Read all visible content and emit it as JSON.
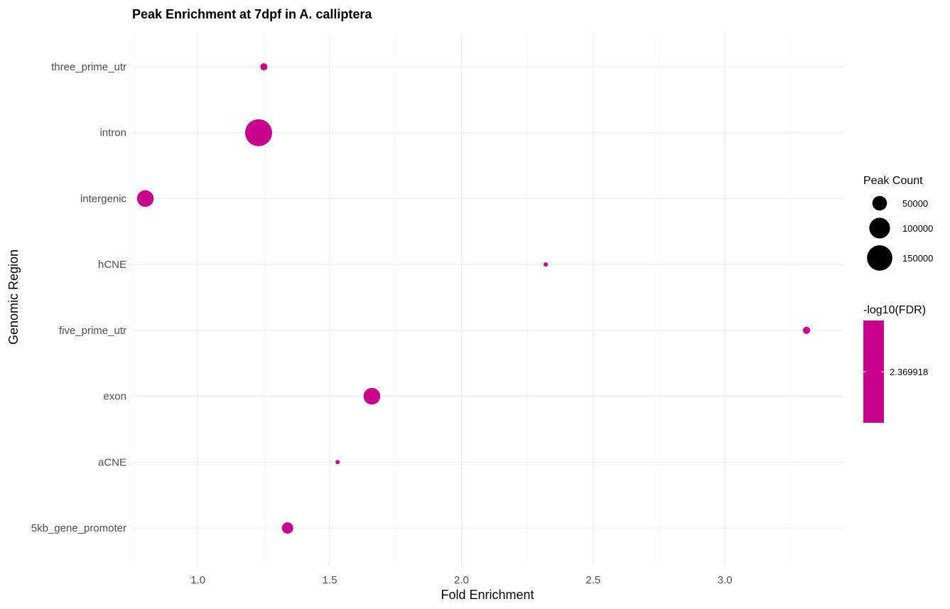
{
  "chart_data": {
    "type": "scatter",
    "title": "Peak Enrichment at 7dpf in A. calliptera",
    "xlabel": "Fold Enrichment",
    "ylabel": "Genomic Region",
    "xlim": [
      0.75,
      3.45
    ],
    "x_ticks": [
      "1.0",
      "1.5",
      "2.0",
      "2.5",
      "3.0"
    ],
    "x_tick_values": [
      1.0,
      1.5,
      2.0,
      2.5,
      3.0
    ],
    "categories": [
      "5kb_gene_promoter",
      "aCNE",
      "exon",
      "five_prime_utr",
      "hCNE",
      "intergenic",
      "intron",
      "three_prime_utr"
    ],
    "points": [
      {
        "category": "three_prime_utr",
        "x": 1.25,
        "peak_count": 12000,
        "neg_log10_fdr": 2.369918
      },
      {
        "category": "intron",
        "x": 1.23,
        "peak_count": 170000,
        "neg_log10_fdr": 2.369918
      },
      {
        "category": "intergenic",
        "x": 0.8,
        "peak_count": 65000,
        "neg_log10_fdr": 2.369918
      },
      {
        "category": "hCNE",
        "x": 2.32,
        "peak_count": 4000,
        "neg_log10_fdr": 2.369918
      },
      {
        "category": "five_prime_utr",
        "x": 3.31,
        "peak_count": 12000,
        "neg_log10_fdr": 2.369918
      },
      {
        "category": "exon",
        "x": 1.66,
        "peak_count": 65000,
        "neg_log10_fdr": 2.369918
      },
      {
        "category": "aCNE",
        "x": 1.53,
        "peak_count": 2000,
        "neg_log10_fdr": 2.369918
      },
      {
        "category": "5kb_gene_promoter",
        "x": 1.34,
        "peak_count": 30000,
        "neg_log10_fdr": 2.369918
      }
    ],
    "point_color": "#c8008c",
    "grid": true,
    "legend_position": "right",
    "legends": {
      "size": {
        "title": "Peak Count",
        "entries": [
          {
            "label": "50000",
            "value": 50000
          },
          {
            "label": "100000",
            "value": 100000
          },
          {
            "label": "150000",
            "value": 150000
          }
        ]
      },
      "color": {
        "title": "-log10(FDR)",
        "break_label": "2.369918",
        "color": "#c8008c"
      }
    }
  }
}
